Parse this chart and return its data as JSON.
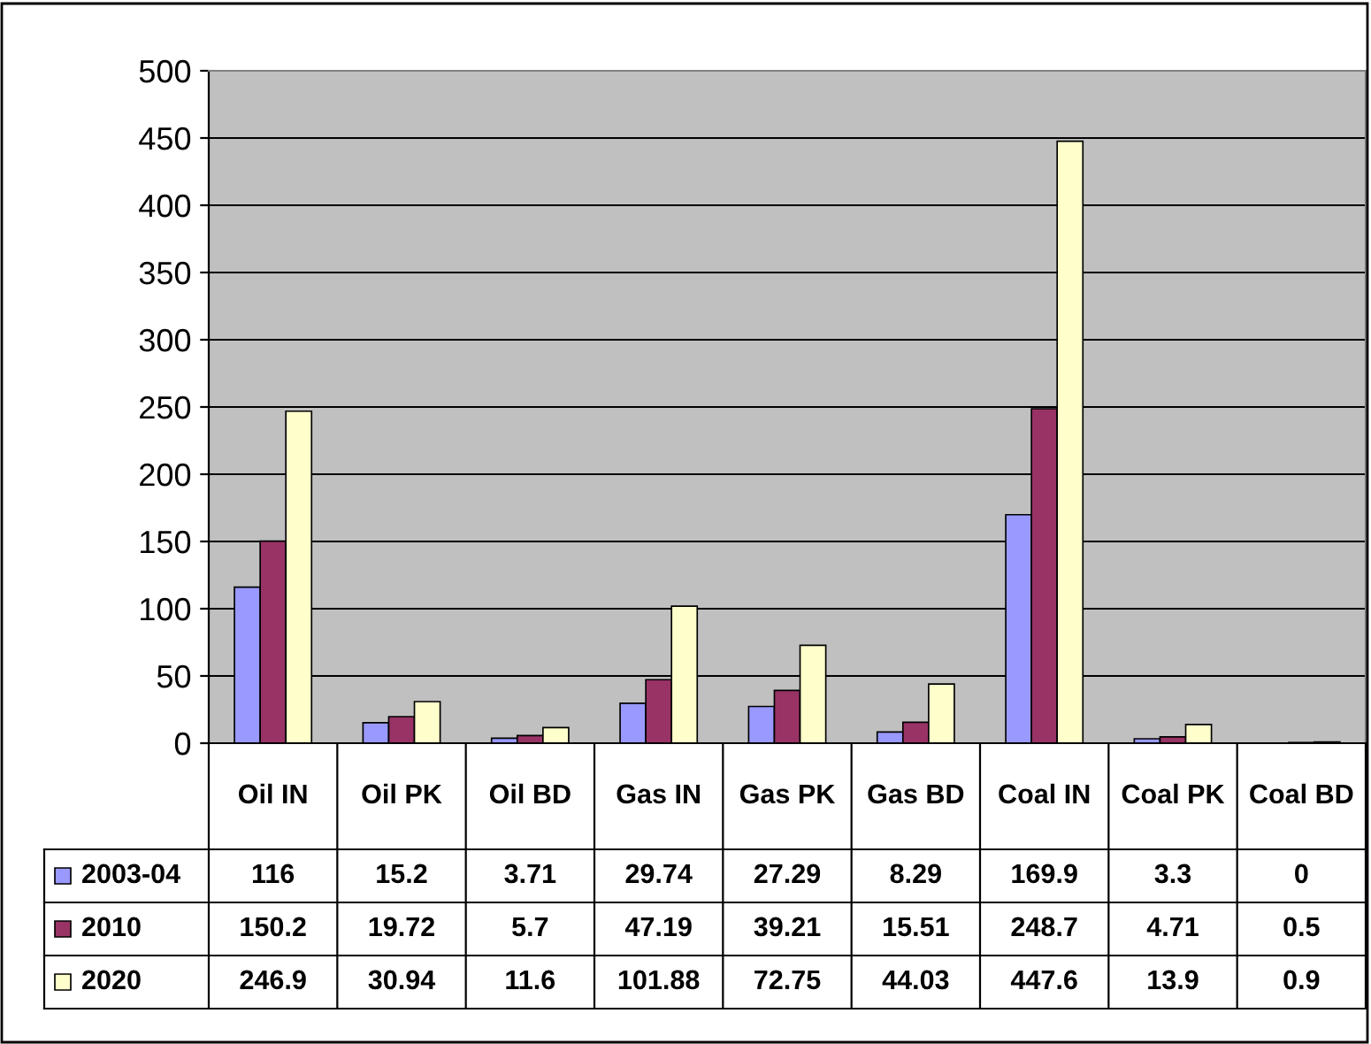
{
  "chart_data": {
    "type": "bar",
    "categories": [
      "Oil IN",
      "Oil PK",
      "Oil BD",
      "Gas IN",
      "Gas PK",
      "Gas BD",
      "Coal IN",
      "Coal PK",
      "Coal BD"
    ],
    "series": [
      {
        "name": "2003-04",
        "color": "#9999ff",
        "values": [
          116,
          15.2,
          3.71,
          29.74,
          27.29,
          8.29,
          169.9,
          3.3,
          0
        ]
      },
      {
        "name": "2010",
        "color": "#993366",
        "values": [
          150.2,
          19.72,
          5.7,
          47.19,
          39.21,
          15.51,
          248.7,
          4.71,
          0.5
        ]
      },
      {
        "name": "2020",
        "color": "#ffffcc",
        "values": [
          246.9,
          30.94,
          11.6,
          101.88,
          72.75,
          44.03,
          447.6,
          13.9,
          0.9
        ]
      }
    ],
    "ylim": [
      0,
      500
    ],
    "yticks": [
      0,
      50,
      100,
      150,
      200,
      250,
      300,
      350,
      400,
      450,
      500
    ],
    "grid": "y",
    "data_labels": true,
    "legend": "bottom"
  }
}
